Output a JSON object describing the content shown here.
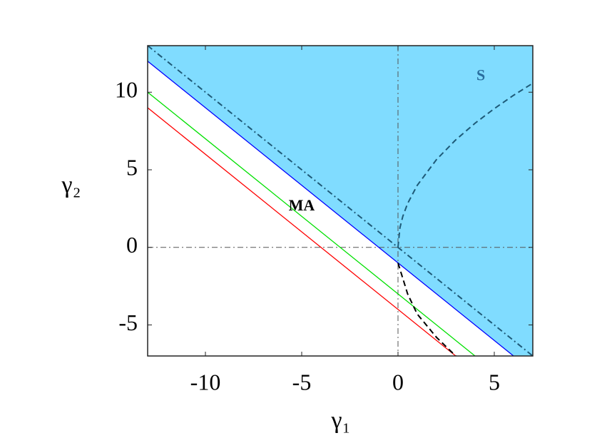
{
  "chart_data": {
    "type": "line",
    "xlim": [
      -13,
      7
    ],
    "ylim": [
      -7,
      13
    ],
    "xticks": [
      -10,
      -5,
      0,
      5
    ],
    "yticks": [
      -5,
      0,
      5,
      10
    ],
    "x_label": "γ₁",
    "y_label": "γ₂",
    "background_fill": "#80dcff",
    "reference_lines": {
      "x": 0,
      "y": 0,
      "color": "#555555"
    },
    "series": [
      {
        "color": "#1e5a78",
        "style": "dashdot",
        "x": [
          -13,
          7
        ],
        "values": [
          13,
          -7
        ]
      },
      {
        "color": "#0000ff",
        "style": "solid",
        "fill_above": "#80dcff",
        "x": [
          -13,
          6
        ],
        "values": [
          12,
          -7
        ]
      },
      {
        "color": "#00e000",
        "style": "solid",
        "x": [
          -13,
          4
        ],
        "values": [
          10,
          -7
        ]
      },
      {
        "color": "#ff0000",
        "style": "solid",
        "x": [
          -13,
          3
        ],
        "values": [
          9,
          -7
        ]
      },
      {
        "color": "#1e5a78",
        "style": "dashed",
        "x": [
          0,
          0.1,
          0.25,
          0.5,
          1,
          2,
          3,
          4,
          5,
          6,
          7
        ],
        "values": [
          0,
          1.26,
          2,
          2.83,
          4,
          5.66,
          6.93,
          8,
          8.94,
          9.8,
          10.58
        ]
      },
      {
        "color": "#000000",
        "style": "dashed",
        "x": [
          0,
          0.25,
          0.5,
          1,
          2,
          3
        ],
        "values": [
          -1,
          -2,
          -3,
          -4.3,
          -5.8,
          -7
        ]
      }
    ],
    "annotations": [
      {
        "text": "S",
        "x": 4.3,
        "y": 11,
        "color": "#2a6e9e"
      },
      {
        "text": "MA",
        "x": -5,
        "y": 2.6,
        "color": "#000000"
      }
    ]
  }
}
